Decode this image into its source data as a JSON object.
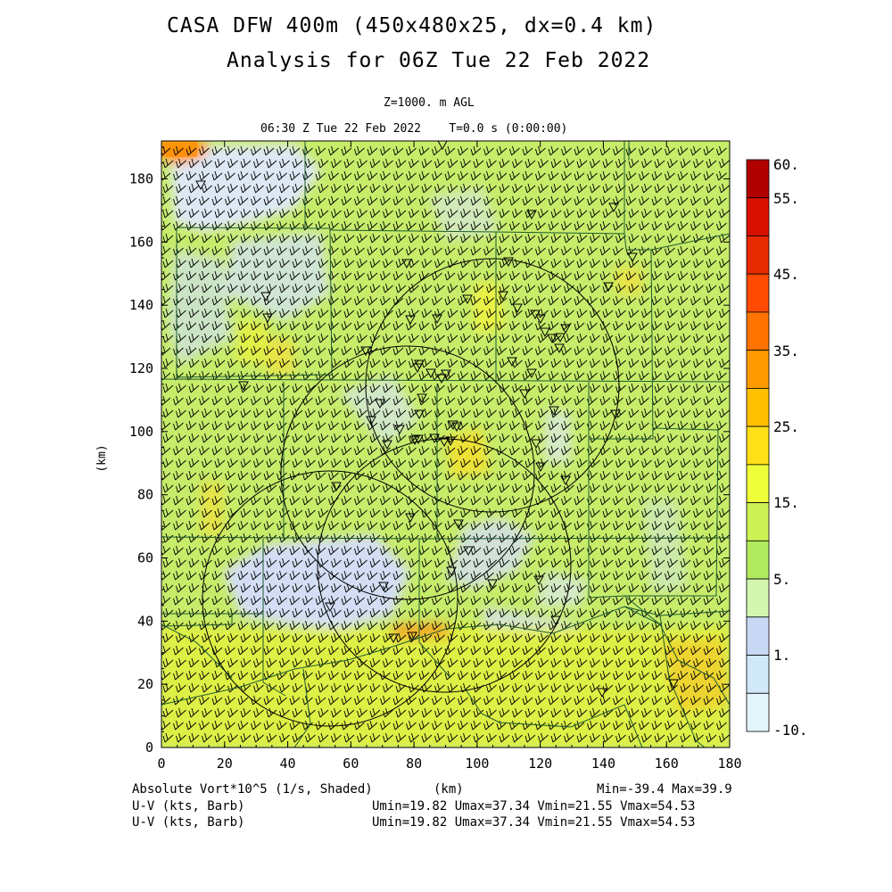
{
  "title": {
    "line1": "CASA DFW 400m (450x480x25, dx=0.4 km)",
    "line2": "Analysis for 06Z Tue 22 Feb 2022"
  },
  "subtitle": {
    "level": "Z=1000. m AGL",
    "time": "06:30 Z Tue 22 Feb 2022    T=0.0 s (0:00:00)"
  },
  "axes": {
    "xlabel": "(km)",
    "ylabel": "(km)",
    "xticks": [
      "0",
      "20",
      "40",
      "60",
      "80",
      "100",
      "120",
      "140",
      "160",
      "180"
    ],
    "yticks": [
      "0",
      "20",
      "40",
      "60",
      "80",
      "100",
      "120",
      "140",
      "160",
      "180"
    ],
    "xlim": [
      0,
      180
    ],
    "ylim": [
      0,
      192
    ]
  },
  "colorbar": {
    "labels": [
      "60.",
      "55.",
      "45.",
      "35.",
      "25.",
      "15.",
      "5.",
      "1.",
      "-10."
    ],
    "colors": [
      "#b00000",
      "#d81000",
      "#e82a00",
      "#ff4a00",
      "#ff7400",
      "#ff9a00",
      "#ffc000",
      "#ffe018",
      "#eeff3a",
      "#cdf255",
      "#b2ea5f",
      "#d4f7b0",
      "#c8d8f4",
      "#d0e8f8",
      "#e3f4fb"
    ]
  },
  "footer": {
    "field_label": "Absolute Vort*10^5 (1/s, Shaded)",
    "field_stats": "Min=-39.4 Max=39.9",
    "xunit": "(km)",
    "barb_label_1": "U-V (kts, Barb)",
    "barb_stats_1": "Umin=19.82 Umax=37.34 Vmin=21.55 Vmax=54.53",
    "barb_label_2": "U-V (kts, Barb)",
    "barb_stats_2": "Umin=19.82 Umax=37.34 Vmin=21.55 Vmax=54.53"
  },
  "map": {
    "background_color": "#c6ec6a",
    "radar_range_rings": 4,
    "station_markers": "inverted-triangle",
    "wind_barbs": "uniform SW flow"
  }
}
